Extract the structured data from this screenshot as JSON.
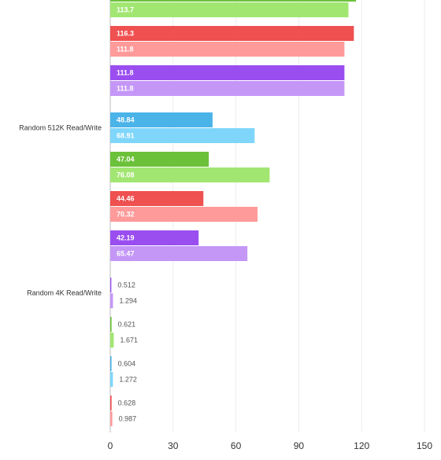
{
  "chart_data": {
    "type": "bar",
    "orientation": "horizontal",
    "xlim": [
      0,
      150
    ],
    "xticks": [
      0,
      30,
      60,
      90,
      120,
      150
    ],
    "grid": true,
    "groups": [
      {
        "bars": [
          {
            "colors": [
              "#6cc13a",
              "#a2e672"
            ],
            "values": [
              117.3,
              113.7
            ]
          },
          {
            "colors": [
              "#ef5050",
              "#ff9a9a"
            ],
            "values": [
              116.3,
              111.8
            ]
          },
          {
            "colors": [
              "#9a4ef0",
              "#c497f7"
            ],
            "values": [
              111.8,
              111.8
            ]
          }
        ]
      },
      {
        "label": "Random 512K Read/Write",
        "bars": [
          {
            "colors": [
              "#4ab3e8",
              "#7fd6fa"
            ],
            "values": [
              48.84,
              68.91
            ]
          },
          {
            "colors": [
              "#6cc13a",
              "#a2e672"
            ],
            "values": [
              47.04,
              76.08
            ]
          },
          {
            "colors": [
              "#ef5050",
              "#ff9a9a"
            ],
            "values": [
              44.46,
              70.32
            ]
          },
          {
            "colors": [
              "#9a4ef0",
              "#c497f7"
            ],
            "values": [
              42.19,
              65.47
            ]
          }
        ]
      },
      {
        "label": "Random 4K Read/Write",
        "bars": [
          {
            "colors": [
              "#9a4ef0",
              "#c497f7"
            ],
            "values": [
              0.512,
              1.294
            ]
          },
          {
            "colors": [
              "#6cc13a",
              "#a2e672"
            ],
            "values": [
              0.621,
              1.671
            ]
          },
          {
            "colors": [
              "#4ab3e8",
              "#7fd6fa"
            ],
            "values": [
              0.604,
              1.272
            ]
          },
          {
            "colors": [
              "#ef5050",
              "#ff9a9a"
            ],
            "values": [
              0.628,
              0.987
            ]
          }
        ]
      }
    ]
  }
}
